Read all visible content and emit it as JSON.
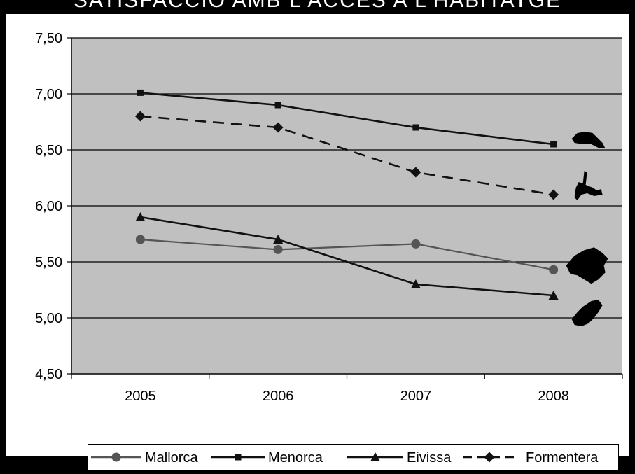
{
  "title": "SATISFACCIÓ AMB L'ACCÉS A L'HABITATGE",
  "colors": {
    "plot_background": "#c0c0c0",
    "frame": "#000000",
    "panel": "#ffffff",
    "mallorca": "#555555",
    "series_default": "#111111"
  },
  "island_icons": [
    "menorca-island-icon",
    "formentera-island-icon",
    "mallorca-island-icon",
    "eivissa-island-icon"
  ],
  "chart_data": {
    "type": "line",
    "title": "",
    "xlabel": "",
    "ylabel": "",
    "categories": [
      "2005",
      "2006",
      "2007",
      "2008"
    ],
    "ylim": [
      4.5,
      7.5
    ],
    "y_ticks": [
      "4,50",
      "5,00",
      "5,50",
      "6,00",
      "6,50",
      "7,00",
      "7,50"
    ],
    "grid": true,
    "legend_position": "bottom",
    "series": [
      {
        "name": "Mallorca",
        "values": [
          5.7,
          5.61,
          5.66,
          5.43
        ],
        "marker": "circle",
        "dash": "solid",
        "color": "#555555"
      },
      {
        "name": "Menorca",
        "values": [
          7.01,
          6.9,
          6.7,
          6.55
        ],
        "marker": "square",
        "dash": "solid",
        "color": "#111111"
      },
      {
        "name": "Eivissa",
        "values": [
          5.9,
          5.7,
          5.3,
          5.2
        ],
        "marker": "triangle",
        "dash": "solid",
        "color": "#111111"
      },
      {
        "name": "Formentera",
        "values": [
          6.8,
          6.7,
          6.3,
          6.1
        ],
        "marker": "diamond",
        "dash": "dashed",
        "color": "#111111"
      }
    ]
  }
}
